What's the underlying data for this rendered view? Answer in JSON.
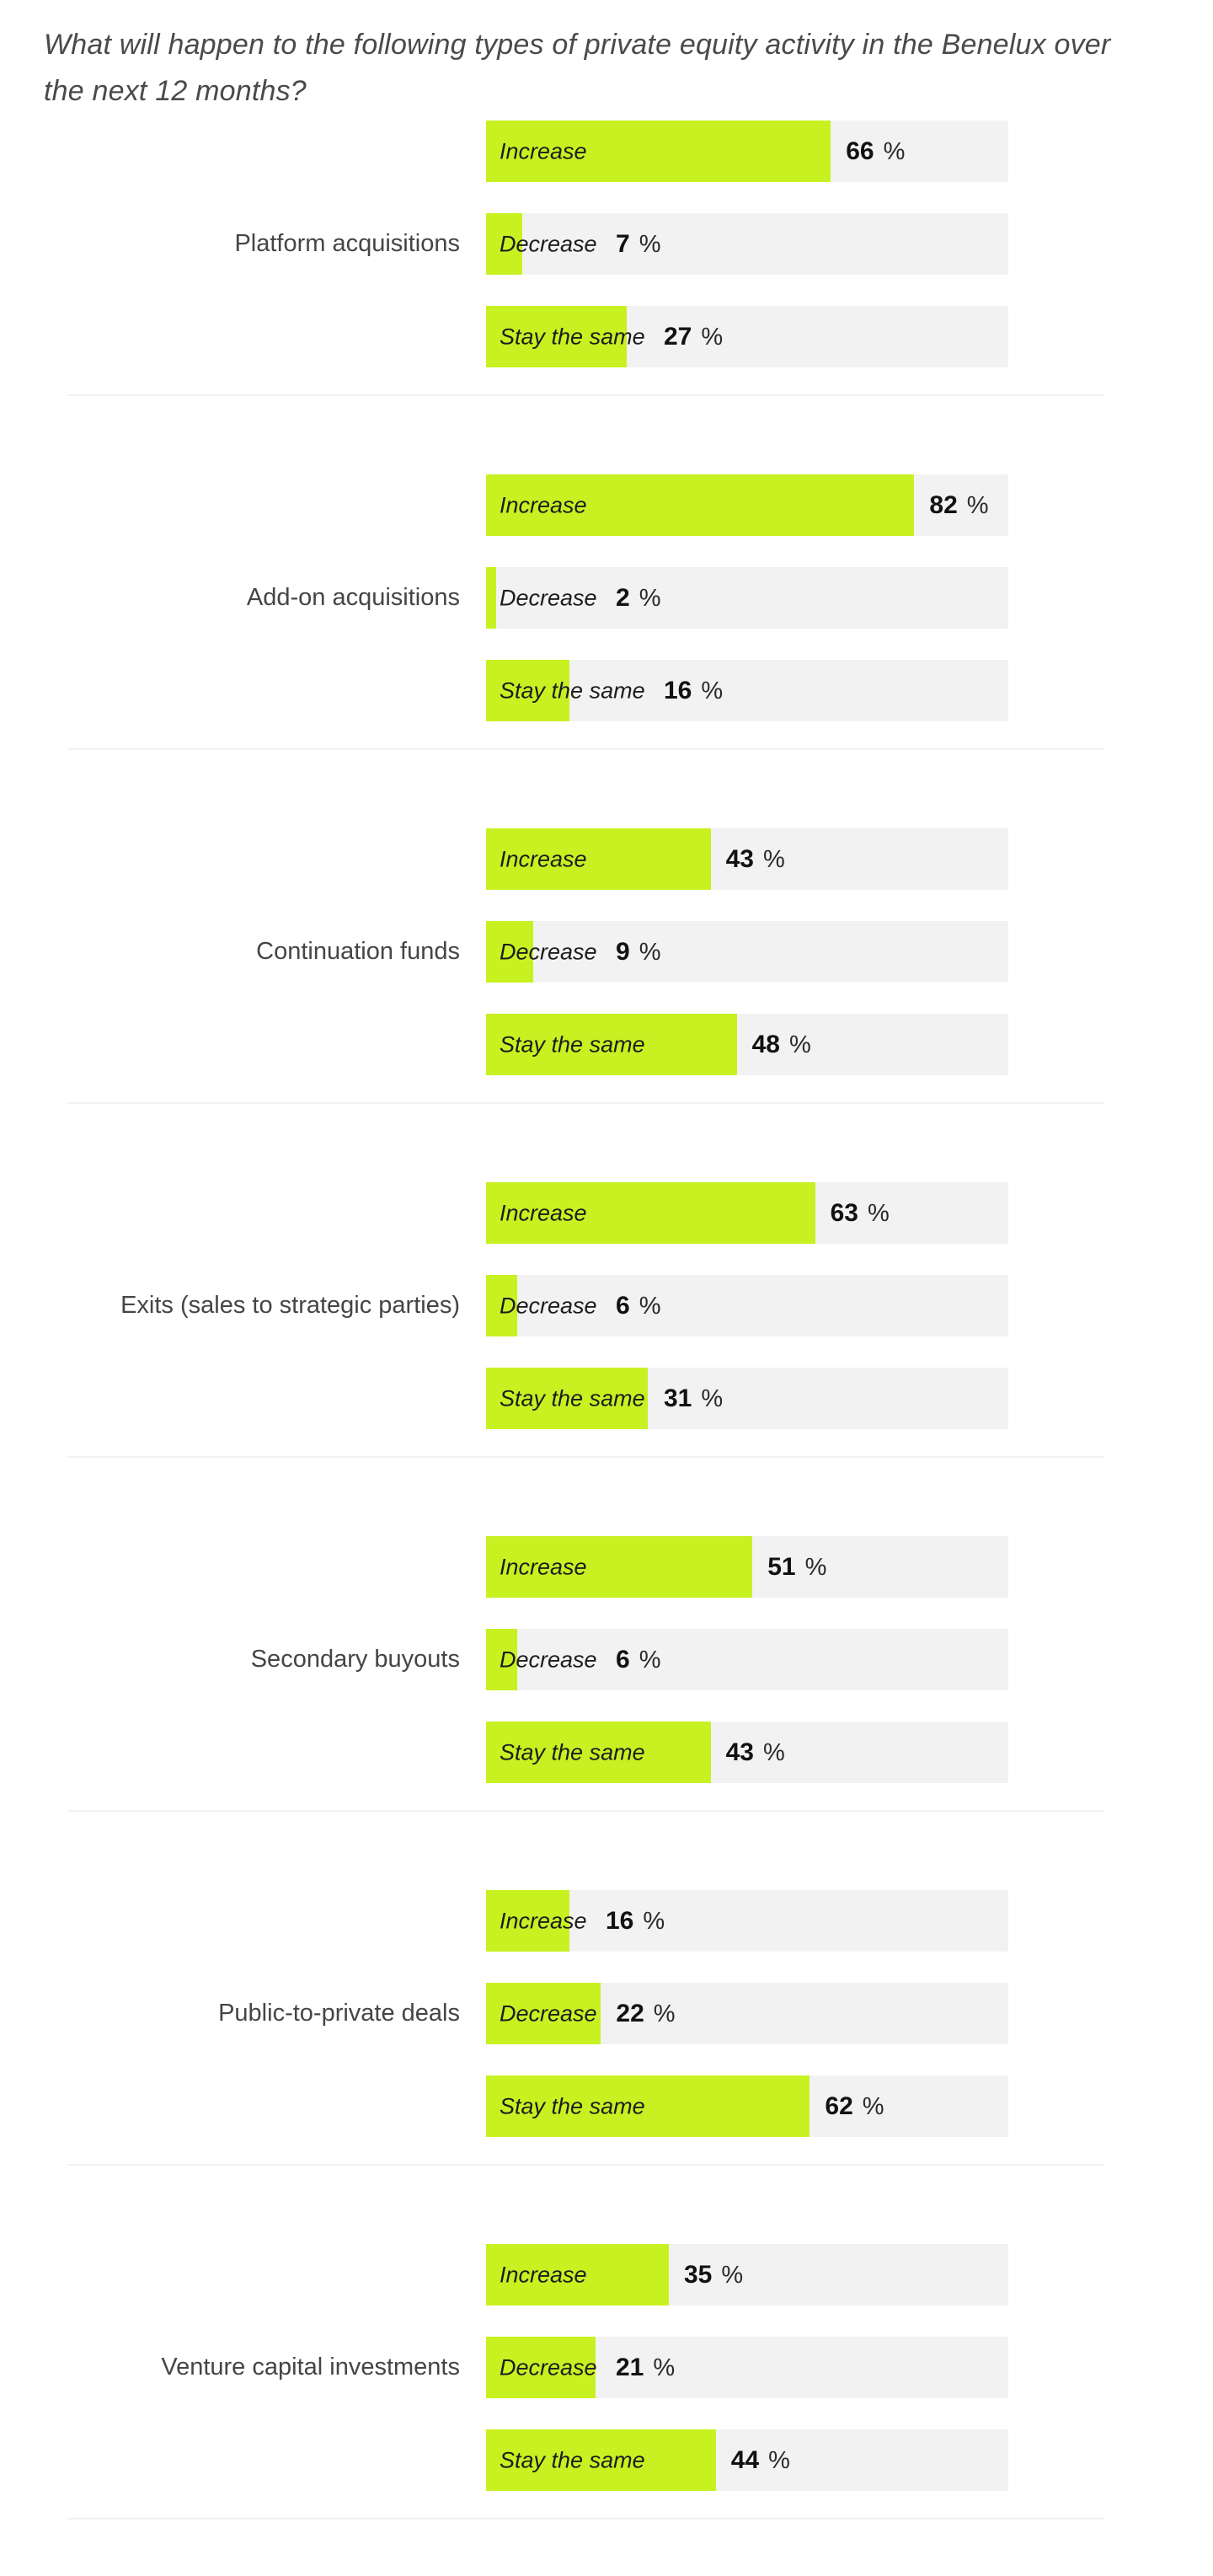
{
  "title_lines": [
    "What will happen to the following types of private equity activity in the Benelux over",
    "the next 12 months?"
  ],
  "chart_data": {
    "type": "bar",
    "title": "What will happen to the following types of private equity activity in the Benelux over the next 12 months?",
    "orientation": "horizontal",
    "unit": "%",
    "xlim": [
      0,
      100
    ],
    "grid": false,
    "legend": "labels drawn inside each bar",
    "colors": {
      "bar_fill": "#c8f122",
      "bar_track": "#f2f2f2"
    },
    "categories": [
      "Platform acquisitions",
      "Add-on acquisitions",
      "Continuation funds",
      "Exits (sales to strategic parties)",
      "Secondary buyouts",
      "Public-to-private deals",
      "Venture capital investments"
    ],
    "series": [
      {
        "name": "Increase",
        "values": [
          66,
          82,
          43,
          63,
          51,
          16,
          35
        ]
      },
      {
        "name": "Decrease",
        "values": [
          7,
          2,
          9,
          6,
          6,
          22,
          21
        ]
      },
      {
        "name": "Stay the same",
        "values": [
          27,
          16,
          48,
          31,
          43,
          62,
          44
        ]
      }
    ]
  }
}
